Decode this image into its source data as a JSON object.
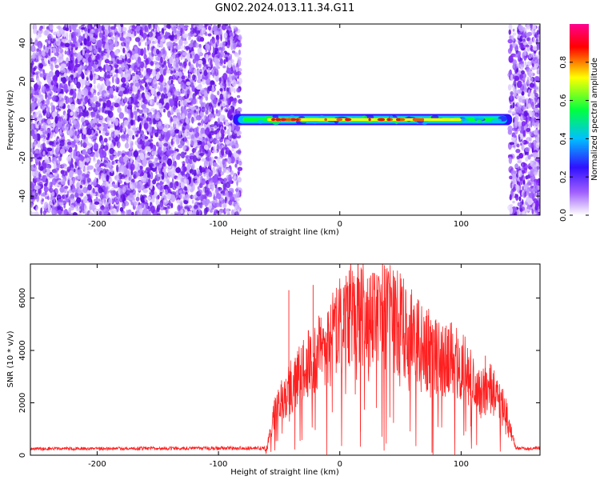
{
  "figure_title": "GN02.2024.013.11.34.G11",
  "chart_data": [
    {
      "type": "heatmap",
      "xlabel": "Height of straight line (km)",
      "ylabel": "Frequency (Hz)",
      "xlim": [
        -255,
        165
      ],
      "ylim": [
        -50,
        50
      ],
      "xticks": [
        -200,
        -100,
        0,
        100
      ],
      "yticks": [
        -40,
        -20,
        0,
        20,
        40
      ],
      "grid": false,
      "colorbar": {
        "label": "Normalized spectral amplitude",
        "range": [
          0.0,
          1.0
        ],
        "ticks": [
          0.0,
          0.2,
          0.4,
          0.6,
          0.8
        ],
        "colormap": [
          "#ffffff",
          "#a060ff",
          "#3010ff",
          "#00c0ff",
          "#00ff40",
          "#ffff00",
          "#ff0000",
          "#ff0090"
        ]
      },
      "noise_regions_km": [
        [
          -255,
          -82
        ],
        [
          140,
          165
        ]
      ],
      "signal_band": {
        "x_range_km": [
          -88,
          142
        ],
        "center_frequency_hz": 0,
        "peak_amplitude_x_range_km": [
          -60,
          100
        ]
      }
    },
    {
      "type": "line",
      "xlabel": "Height of straight line (km)",
      "ylabel": "SNR (10 * v/v)",
      "xlim": [
        -255,
        165
      ],
      "ylim": [
        0,
        7300
      ],
      "xticks": [
        -200,
        -100,
        0,
        100
      ],
      "yticks": [
        0,
        2000,
        4000,
        6000
      ],
      "grid": false,
      "series": [
        {
          "color": "#ff2020",
          "envelope": {
            "x": [
              -255,
              -60,
              -55,
              -45,
              -35,
              -25,
              -15,
              -5,
              5,
              15,
              25,
              35,
              45,
              55,
              65,
              75,
              85,
              95,
              105,
              115,
              122,
              130,
              138,
              145,
              155,
              165
            ],
            "y": [
              250,
              280,
              1500,
              2400,
              3100,
              3600,
              4100,
              4700,
              5500,
              5700,
              5300,
              5700,
              5400,
              5000,
              4400,
              4100,
              3700,
              3800,
              3300,
              2400,
              2700,
              2500,
              1500,
              300,
              250,
              300
            ]
          },
          "spikes": [
            {
              "x": -42,
              "y": 6300
            },
            {
              "x": -22,
              "y": 6500
            },
            {
              "x": 15,
              "y": 7300
            },
            {
              "x": 3,
              "y": 6400
            },
            {
              "x": 76,
              "y": 100
            },
            {
              "x": 17,
              "y": 900
            },
            {
              "x": 120,
              "y": 3800
            },
            {
              "x": 108,
              "y": 1100
            }
          ]
        }
      ]
    }
  ]
}
